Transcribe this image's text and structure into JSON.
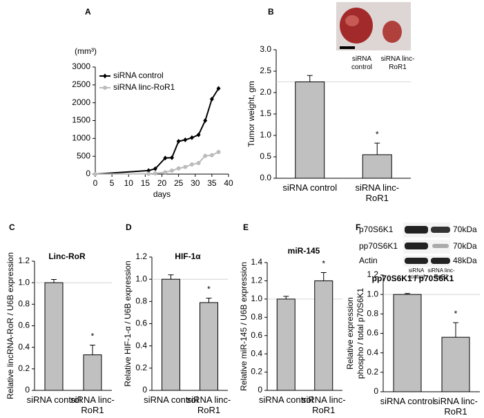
{
  "chart_data": [
    {
      "type": "line",
      "panel": "A",
      "y_unit": "(mm³)",
      "x_label": "days",
      "x": [
        0,
        16,
        18,
        21,
        23,
        25,
        27,
        29,
        31,
        33,
        35,
        37
      ],
      "series": [
        {
          "name": "siRNA control",
          "color": "#000000",
          "marker": "diamond",
          "values": [
            0,
            100,
            150,
            450,
            460,
            920,
            960,
            1020,
            1100,
            1500,
            2100,
            2400
          ]
        },
        {
          "name": "siRNA linc-RoR1",
          "color": "#bbbbbb",
          "marker": "circle",
          "values": [
            0,
            10,
            20,
            50,
            100,
            160,
            200,
            270,
            310,
            510,
            530,
            620
          ]
        }
      ],
      "xlim": [
        0,
        40
      ],
      "xticks": [
        0,
        5,
        10,
        15,
        20,
        25,
        30,
        35,
        40
      ],
      "ylim": [
        0,
        3000
      ],
      "yticks": [
        0,
        500,
        1000,
        1500,
        2000,
        2500,
        3000
      ],
      "legend": "upper left"
    },
    {
      "type": "bar",
      "panel": "B",
      "y_label": "Tumor weight, gm",
      "categories": [
        "siRNA control",
        "siRNA linc-RoR1"
      ],
      "values": [
        2.25,
        0.55
      ],
      "errors": [
        0.15,
        0.27
      ],
      "annotation": "*",
      "color": "#c0c0c0",
      "ylim": [
        0,
        3
      ],
      "yticks": [
        {
          "value": 0,
          "label": "0.0"
        },
        0.5,
        {
          "value": 1,
          "label": "1.0"
        },
        1.5,
        {
          "value": 2,
          "label": "2.0"
        },
        2.5,
        {
          "value": 3,
          "label": "3.0"
        }
      ],
      "photo_labels": [
        "siRNA control",
        "siRNA linc-RoR1"
      ]
    },
    {
      "type": "bar",
      "panel": "C",
      "title": "Linc-RoR",
      "y_label": "Relative lincRNA-RoR / U6B expression",
      "categories": [
        "siRNA control",
        "siRNA linc-RoR1"
      ],
      "values": [
        1.0,
        0.33
      ],
      "errors": [
        0.03,
        0.09
      ],
      "annotation": "*",
      "color": "#c0c0c0",
      "ylim": [
        0,
        1.2
      ],
      "yticks": [
        0,
        0.2,
        0.4,
        0.6,
        0.8,
        {
          "value": 1,
          "label": "1.0"
        },
        1.2
      ]
    },
    {
      "type": "bar",
      "panel": "D",
      "title": "HIF-1α",
      "y_label": "Relative HIF-1-α / U6B expression",
      "categories": [
        "siRNA control",
        "siRNA linc-RoR1"
      ],
      "values": [
        1.0,
        0.79
      ],
      "errors": [
        0.04,
        0.04
      ],
      "annotation": "*",
      "color": "#c0c0c0",
      "ylim": [
        0,
        1.2
      ],
      "yticks": [
        0,
        0.2,
        0.4,
        0.6,
        0.8,
        {
          "value": 1,
          "label": "1.0"
        },
        1.2
      ]
    },
    {
      "type": "bar",
      "panel": "E",
      "title": "miR-145",
      "y_label": "Relative miR-145 / U6B expression",
      "categories": [
        "siRNA control",
        "siRNA linc-RoR1"
      ],
      "values": [
        1.0,
        1.2
      ],
      "errors": [
        0.03,
        0.09
      ],
      "annotation": "*",
      "color": "#c0c0c0",
      "ylim": [
        0,
        1.4
      ],
      "yticks": [
        0,
        0.2,
        0.4,
        0.6,
        0.8,
        {
          "value": 1,
          "label": "1.0"
        },
        1.2,
        1.4
      ]
    },
    {
      "type": "bar",
      "panel": "F",
      "title": "pp70S6K1 / p70S6K1",
      "y_label": [
        "Relative expression",
        "phospho / total p70S6K1"
      ],
      "categories": [
        "siRNA control",
        "siRNA linc-RoR1"
      ],
      "values": [
        1.0,
        0.56
      ],
      "errors": [
        0.01,
        0.15
      ],
      "annotation": "*",
      "color": "#c0c0c0",
      "ylim": [
        0,
        1.2
      ],
      "yticks": [
        0,
        0.2,
        0.4,
        0.6,
        0.8,
        {
          "value": 1,
          "label": "1.0"
        },
        1.2
      ],
      "blot": {
        "rows": [
          "p70S6K1",
          "pp70S6K1",
          "Actin"
        ],
        "sizes": [
          "70kDa",
          "70kDa",
          "48kDa"
        ],
        "lanes": [
          "siRNA control",
          "siRNA linc-RoR1"
        ]
      }
    }
  ]
}
